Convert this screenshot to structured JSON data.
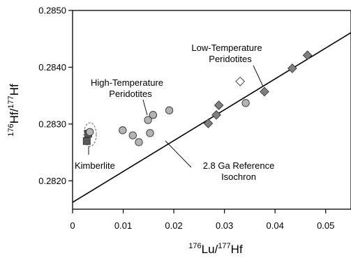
{
  "chart_data": {
    "type": "scatter",
    "title": "",
    "xlabel_main": "Lu/",
    "xlabel_sup1": "176",
    "xlabel_sup2": "177",
    "xlabel_tail": "Hf",
    "ylabel_main": "Hf/",
    "ylabel_sup1": "176",
    "ylabel_sup2": "177",
    "ylabel_tail": "Hf",
    "xlim": [
      0,
      0.055
    ],
    "ylim": [
      0.2815,
      0.285
    ],
    "x_ticks": [
      0,
      0.01,
      0.02,
      0.03,
      0.04,
      0.05
    ],
    "x_tick_labels": [
      "0",
      "0.01",
      "0.02",
      "0.03",
      "0.04",
      "0.05"
    ],
    "y_ticks": [
      0.282,
      0.283,
      0.284,
      0.285
    ],
    "y_tick_labels": [
      "0.2820",
      "0.2830",
      "0.2840",
      "0.2850"
    ],
    "grid": false,
    "series": [
      {
        "marker": "square",
        "fill": "#5a5a5a",
        "points": [
          {
            "x": 0.0028,
            "y": 0.2827
          },
          {
            "x": 0.0031,
            "y": 0.28283
          }
        ]
      },
      {
        "marker": "circle",
        "fill": "#b4b4b4",
        "points": [
          {
            "x": 0.0034,
            "y": 0.28286
          },
          {
            "x": 0.0099,
            "y": 0.28289
          },
          {
            "x": 0.0119,
            "y": 0.2828
          },
          {
            "x": 0.0131,
            "y": 0.28268
          },
          {
            "x": 0.0149,
            "y": 0.28307
          },
          {
            "x": 0.0153,
            "y": 0.28284
          },
          {
            "x": 0.0159,
            "y": 0.28316
          },
          {
            "x": 0.0191,
            "y": 0.28324
          },
          {
            "x": 0.0342,
            "y": 0.28337
          }
        ]
      },
      {
        "marker": "diamond",
        "fill": "#808080",
        "points": [
          {
            "x": 0.0268,
            "y": 0.28301
          },
          {
            "x": 0.0284,
            "y": 0.28316
          },
          {
            "x": 0.0289,
            "y": 0.28333
          },
          {
            "x": 0.0379,
            "y": 0.28357
          },
          {
            "x": 0.0434,
            "y": 0.28398
          },
          {
            "x": 0.0464,
            "y": 0.28421
          }
        ]
      },
      {
        "marker": "diamond-open",
        "fill": "#ffffff",
        "points": [
          {
            "x": 0.0331,
            "y": 0.28375
          }
        ]
      }
    ],
    "reference_line": {
      "label_line1": "2.8 Ga Reference",
      "label_line2": "Isochron",
      "x": [
        0,
        0.055
      ],
      "y": [
        0.28162,
        0.28461
      ]
    },
    "annotations": [
      {
        "line1": "Low-Temperature",
        "line2": "Peridotites"
      },
      {
        "line1": "High-Temperature",
        "line2": "Peridotites"
      },
      {
        "line1": "Kimberlite",
        "line2": ""
      }
    ]
  }
}
